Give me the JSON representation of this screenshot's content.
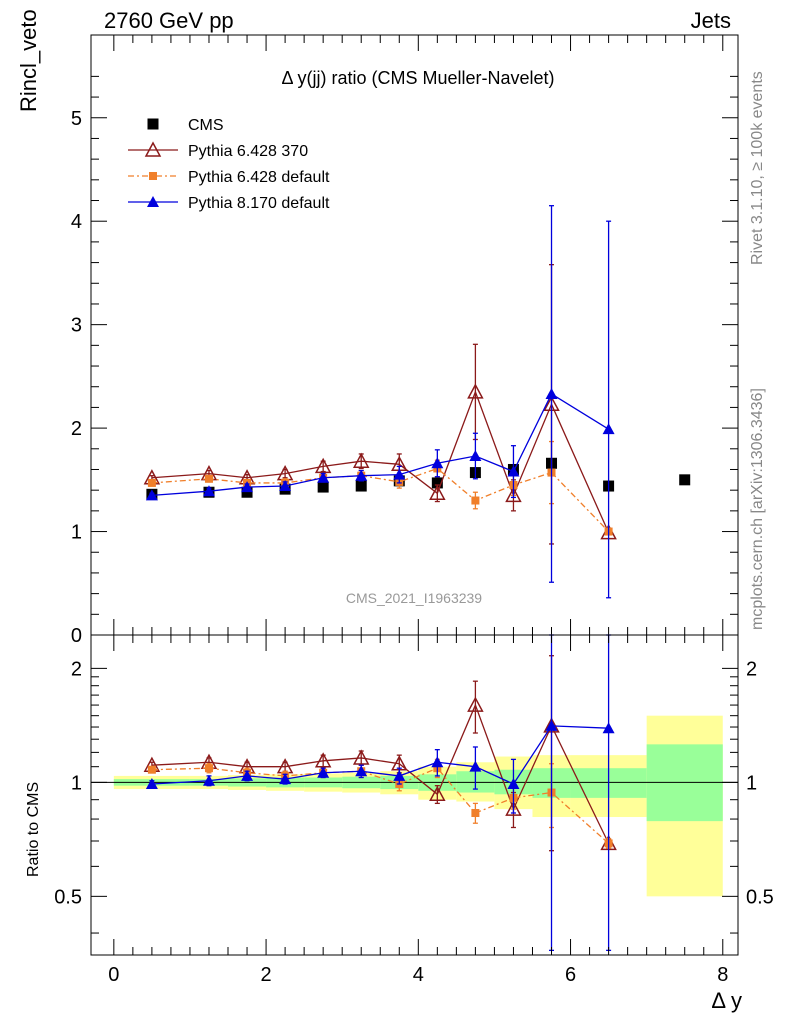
{
  "header": {
    "left": "2760 GeV pp",
    "right": "Jets"
  },
  "side_labels": {
    "rivet": "Rivet 3.1.10, ≥ 100k events",
    "mcplots": "mcplots.cern.ch [arXiv:1306.3436]"
  },
  "watermark": "CMS_2021_I1963239",
  "colors": {
    "cms": "#000000",
    "p6_370": "#8b1a1a",
    "p6_default": "#f07f2a",
    "p8_default": "#0000dd",
    "band_outer": "#ffff99",
    "band_inner": "#99ff99"
  },
  "chart_data": [
    {
      "type": "scatter",
      "panel": "main",
      "title": "Δ y(jj) ratio (CMS Mueller-Navelet)",
      "ylabel": "Rincl_veto",
      "xlim": [
        -0.3,
        8.2
      ],
      "ylim": [
        0,
        5.8
      ],
      "yticks": [
        0,
        1,
        2,
        3,
        4,
        5
      ],
      "legend_position": "top-left",
      "series": [
        {
          "name": "CMS",
          "key": "cms",
          "marker": "square",
          "x": [
            0.5,
            1.25,
            1.75,
            2.25,
            2.75,
            3.25,
            3.75,
            4.25,
            4.75,
            5.25,
            5.75,
            6.5,
            7.5
          ],
          "y": [
            1.36,
            1.38,
            1.38,
            1.41,
            1.43,
            1.44,
            1.49,
            1.47,
            1.57,
            1.6,
            1.66,
            1.44,
            1.5
          ]
        },
        {
          "name": "Pythia 6.428 370",
          "key": "p6_370",
          "marker": "triangle-open",
          "x": [
            0.5,
            1.25,
            1.75,
            2.25,
            2.75,
            3.25,
            3.75,
            4.25,
            4.75,
            5.25,
            5.75,
            6.5
          ],
          "y": [
            1.52,
            1.56,
            1.52,
            1.56,
            1.63,
            1.68,
            1.65,
            1.37,
            2.35,
            1.35,
            2.23,
            0.99
          ],
          "err": [
            0.02,
            0.03,
            0.03,
            0.04,
            0.05,
            0.07,
            0.1,
            0.08,
            0.46,
            0.15,
            1.35,
            0.02
          ]
        },
        {
          "name": "Pythia 6.428 default",
          "key": "p6_default",
          "marker": "square-small",
          "x": [
            0.5,
            1.25,
            1.75,
            2.25,
            2.75,
            3.25,
            3.75,
            4.25,
            4.75,
            5.25,
            5.75,
            6.5
          ],
          "y": [
            1.47,
            1.51,
            1.47,
            1.47,
            1.52,
            1.54,
            1.48,
            1.61,
            1.3,
            1.45,
            1.57,
            1.0
          ],
          "err": [
            0.02,
            0.03,
            0.03,
            0.04,
            0.04,
            0.05,
            0.06,
            0.08,
            0.08,
            0.1,
            0.3,
            0.02
          ]
        },
        {
          "name": "Pythia 8.170 default",
          "key": "p8_default",
          "marker": "triangle",
          "x": [
            0.5,
            1.25,
            1.75,
            2.25,
            2.75,
            3.25,
            3.75,
            4.25,
            4.75,
            5.25,
            5.75,
            6.5
          ],
          "y": [
            1.35,
            1.39,
            1.43,
            1.44,
            1.52,
            1.54,
            1.55,
            1.66,
            1.73,
            1.58,
            2.33,
            1.99
          ],
          "err": [
            0.02,
            0.03,
            0.03,
            0.04,
            0.04,
            0.05,
            0.08,
            0.13,
            0.22,
            0.25,
            1.82,
            2.01
          ]
        }
      ]
    },
    {
      "type": "scatter",
      "panel": "ratio",
      "ylabel": "Ratio to CMS",
      "xlabel": "Δ y",
      "xlim": [
        -0.3,
        8.2
      ],
      "ylim": [
        0.35,
        2.45
      ],
      "yscale": "log",
      "yticks": [
        0.5,
        1,
        2
      ],
      "xticks": [
        0,
        2,
        4,
        6,
        8
      ],
      "uncertainty_bands": [
        {
          "x0": 0.0,
          "x1": 1.0,
          "inner": [
            0.98,
            1.02
          ],
          "outer": [
            0.96,
            1.04
          ]
        },
        {
          "x0": 1.0,
          "x1": 1.5,
          "inner": [
            0.98,
            1.02
          ],
          "outer": [
            0.96,
            1.04
          ]
        },
        {
          "x0": 1.5,
          "x1": 2.0,
          "inner": [
            0.975,
            1.025
          ],
          "outer": [
            0.955,
            1.045
          ]
        },
        {
          "x0": 2.0,
          "x1": 2.5,
          "inner": [
            0.97,
            1.03
          ],
          "outer": [
            0.95,
            1.05
          ]
        },
        {
          "x0": 2.5,
          "x1": 3.0,
          "inner": [
            0.97,
            1.03
          ],
          "outer": [
            0.945,
            1.055
          ]
        },
        {
          "x0": 3.0,
          "x1": 3.5,
          "inner": [
            0.965,
            1.035
          ],
          "outer": [
            0.94,
            1.06
          ]
        },
        {
          "x0": 3.5,
          "x1": 4.0,
          "inner": [
            0.96,
            1.04
          ],
          "outer": [
            0.93,
            1.07
          ]
        },
        {
          "x0": 4.0,
          "x1": 4.5,
          "inner": [
            0.95,
            1.05
          ],
          "outer": [
            0.9,
            1.1
          ]
        },
        {
          "x0": 4.5,
          "x1": 5.0,
          "inner": [
            0.94,
            1.07
          ],
          "outer": [
            0.89,
            1.13
          ]
        },
        {
          "x0": 5.0,
          "x1": 5.5,
          "inner": [
            0.93,
            1.08
          ],
          "outer": [
            0.85,
            1.17
          ]
        },
        {
          "x0": 5.5,
          "x1": 6.0,
          "inner": [
            0.91,
            1.09
          ],
          "outer": [
            0.81,
            1.18
          ]
        },
        {
          "x0": 6.0,
          "x1": 7.0,
          "inner": [
            0.91,
            1.09
          ],
          "outer": [
            0.81,
            1.18
          ]
        },
        {
          "x0": 7.0,
          "x1": 8.0,
          "inner": [
            0.79,
            1.26
          ],
          "outer": [
            0.5,
            1.5
          ]
        }
      ],
      "series": [
        {
          "name": "Pythia 6.428 370",
          "key": "p6_370",
          "marker": "triangle-open",
          "x": [
            0.5,
            1.25,
            1.75,
            2.25,
            2.75,
            3.25,
            3.75,
            4.25,
            4.75,
            5.25,
            5.75,
            6.5
          ],
          "y": [
            1.11,
            1.13,
            1.1,
            1.1,
            1.14,
            1.16,
            1.12,
            0.93,
            1.6,
            0.85,
            1.41,
            0.69
          ],
          "err": [
            0.02,
            0.03,
            0.03,
            0.03,
            0.04,
            0.05,
            0.06,
            0.05,
            0.25,
            0.09,
            0.75,
            0.02
          ]
        },
        {
          "name": "Pythia 6.428 default",
          "key": "p6_default",
          "marker": "square-small",
          "x": [
            0.5,
            1.25,
            1.75,
            2.25,
            2.75,
            3.25,
            3.75,
            4.25,
            4.75,
            5.25,
            5.75,
            6.5
          ],
          "y": [
            1.08,
            1.09,
            1.06,
            1.04,
            1.06,
            1.07,
            0.99,
            1.09,
            0.83,
            0.91,
            0.94,
            0.69
          ],
          "err": [
            0.02,
            0.03,
            0.03,
            0.03,
            0.03,
            0.04,
            0.04,
            0.06,
            0.05,
            0.06,
            0.18,
            0.02
          ]
        },
        {
          "name": "Pythia 8.170 default",
          "key": "p8_default",
          "marker": "triangle",
          "x": [
            0.5,
            1.25,
            1.75,
            2.25,
            2.75,
            3.25,
            3.75,
            4.25,
            4.75,
            5.25,
            5.75,
            6.5
          ],
          "y": [
            0.99,
            1.01,
            1.04,
            1.02,
            1.06,
            1.07,
            1.04,
            1.13,
            1.1,
            0.99,
            1.41,
            1.39
          ],
          "err": [
            0.02,
            0.03,
            0.03,
            0.03,
            0.03,
            0.04,
            0.05,
            0.09,
            0.14,
            0.16,
            1.1,
            1.4
          ]
        }
      ]
    }
  ]
}
